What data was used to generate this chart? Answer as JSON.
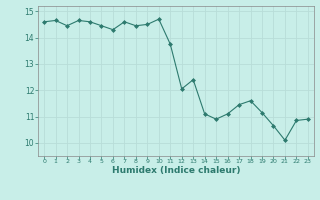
{
  "x": [
    0,
    1,
    2,
    3,
    4,
    5,
    6,
    7,
    8,
    9,
    10,
    11,
    12,
    13,
    14,
    15,
    16,
    17,
    18,
    19,
    20,
    21,
    22,
    23
  ],
  "y": [
    14.6,
    14.65,
    14.45,
    14.65,
    14.6,
    14.45,
    14.3,
    14.6,
    14.45,
    14.5,
    14.7,
    13.75,
    12.05,
    12.4,
    11.1,
    10.9,
    11.1,
    11.45,
    11.6,
    11.15,
    10.65,
    10.1,
    10.85,
    10.9
  ],
  "xlabel": "Humidex (Indice chaleur)",
  "xlim": [
    -0.5,
    23.5
  ],
  "ylim": [
    9.5,
    15.2
  ],
  "yticks": [
    10,
    11,
    12,
    13,
    14,
    15
  ],
  "xticks": [
    0,
    1,
    2,
    3,
    4,
    5,
    6,
    7,
    8,
    9,
    10,
    11,
    12,
    13,
    14,
    15,
    16,
    17,
    18,
    19,
    20,
    21,
    22,
    23
  ],
  "line_color": "#2d7a6e",
  "marker_color": "#2d7a6e",
  "bg_color": "#c8eee8",
  "grid_color": "#b8ddd8",
  "font_color": "#2d7a6e"
}
